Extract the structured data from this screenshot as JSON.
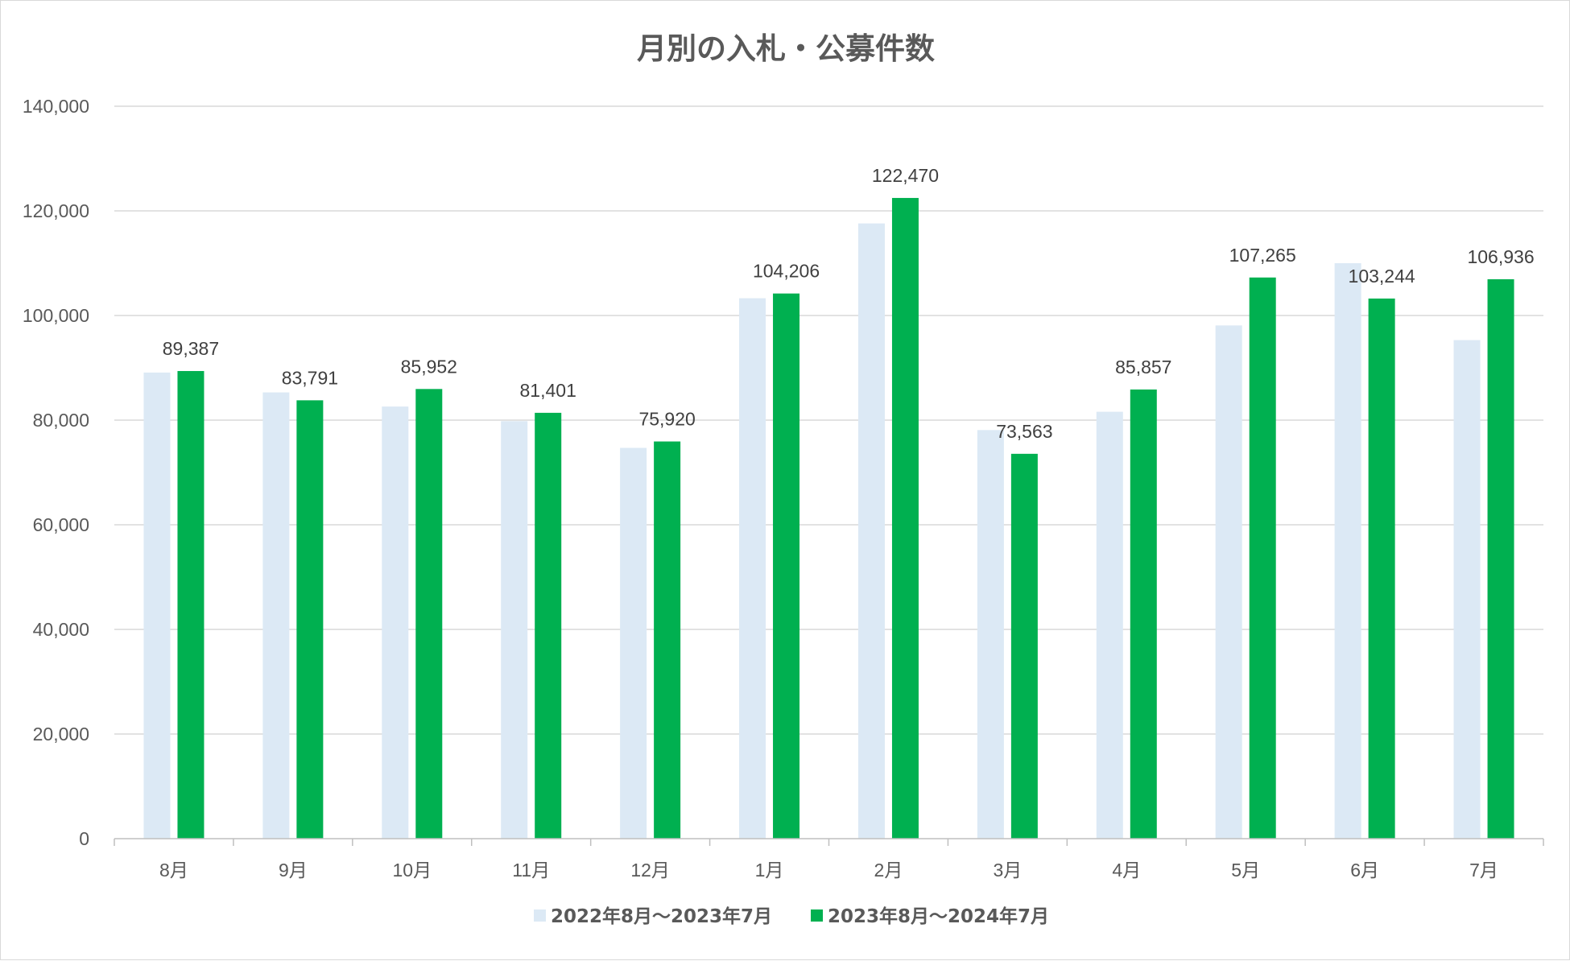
{
  "chart_data": {
    "type": "bar",
    "title": "月別の入札・公募件数",
    "xlabel": "",
    "ylabel": "",
    "categories": [
      "8月",
      "9月",
      "10月",
      "11月",
      "12月",
      "1月",
      "2月",
      "3月",
      "4月",
      "5月",
      "6月",
      "7月"
    ],
    "y_ticks": [
      "0",
      "20,000",
      "40,000",
      "60,000",
      "80,000",
      "100,000",
      "120,000",
      "140,000"
    ],
    "ylim": [
      0,
      140000
    ],
    "grid": true,
    "legend_position": "bottom",
    "series": [
      {
        "name": "2022年8月～2023年7月",
        "color": "#dce9f5",
        "values": [
          89100,
          85300,
          82600,
          79800,
          74700,
          103300,
          117600,
          78100,
          81600,
          98100,
          110000,
          95300
        ],
        "show_labels": false
      },
      {
        "name": "2023年8月～2024年7月",
        "color": "#00b050",
        "values": [
          89387,
          83791,
          85952,
          81401,
          75920,
          104206,
          122470,
          73563,
          85857,
          107265,
          103244,
          106936
        ],
        "labels": [
          "89,387",
          "83,791",
          "85,952",
          "81,401",
          "75,920",
          "104,206",
          "122,470",
          "73,563",
          "85,857",
          "107,265",
          "103,244",
          "106,936"
        ],
        "show_labels": true
      }
    ]
  }
}
